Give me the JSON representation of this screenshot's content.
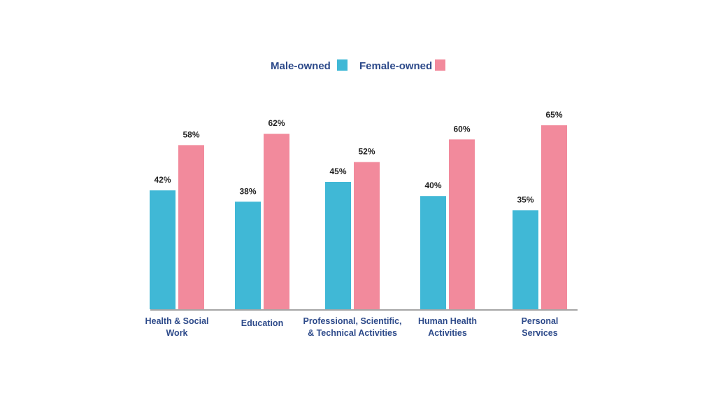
{
  "chart_data": {
    "type": "bar",
    "categories": [
      [
        "Health & Social",
        "Work"
      ],
      [
        "Education"
      ],
      [
        "Professional, Scientific,",
        "& Technical Activities"
      ],
      [
        "Human Health",
        "Activities"
      ],
      [
        "Personal",
        "Services"
      ]
    ],
    "series": [
      {
        "name": "Male-owned",
        "color": "#40b8d6",
        "values": [
          42,
          38,
          45,
          40,
          35
        ],
        "labels": [
          "42%",
          "38%",
          "45%",
          "40%",
          "35%"
        ]
      },
      {
        "name": "Female-owned",
        "color": "#f28a9c",
        "values": [
          58,
          62,
          52,
          60,
          65
        ],
        "labels": [
          "58%",
          "62%",
          "52%",
          "60%",
          "65%"
        ]
      }
    ],
    "ylim": [
      0,
      65
    ],
    "grid": false,
    "legend": "top-center",
    "axis_color": "#a6a6a6",
    "label_color": "#2d4a8a"
  }
}
